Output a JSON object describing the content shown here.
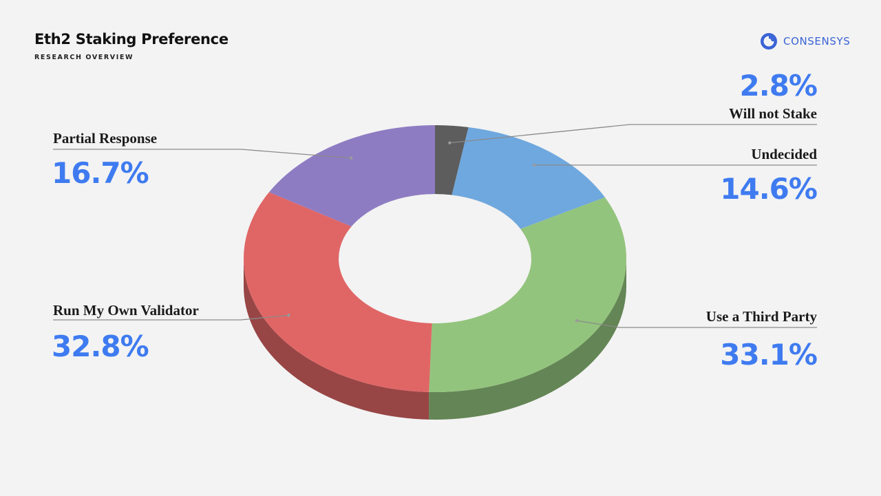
{
  "header": {
    "title": "Eth2 Staking Preference",
    "subtitle": "RESEARCH OVERVIEW"
  },
  "brand": {
    "name": "CONSENSYS",
    "color": "#3a63d6"
  },
  "chart_data": {
    "type": "pie",
    "variant": "3d-donut",
    "title": "",
    "slices": [
      {
        "label": "Will not Stake",
        "value": 2.8,
        "value_text": "2.8%",
        "color": "#5d5d5d"
      },
      {
        "label": "Undecided",
        "value": 14.6,
        "value_text": "14.6%",
        "color": "#6fa8de"
      },
      {
        "label": "Use a Third Party",
        "value": 33.1,
        "value_text": "33.1%",
        "color": "#93c47d"
      },
      {
        "label": "Run My Own Validator",
        "value": 32.8,
        "value_text": "32.8%",
        "color": "#e06666"
      },
      {
        "label": "Partial Response",
        "value": 16.7,
        "value_text": "16.7%",
        "color": "#8e7cc3"
      }
    ],
    "value_color": "#3f7bf0"
  }
}
